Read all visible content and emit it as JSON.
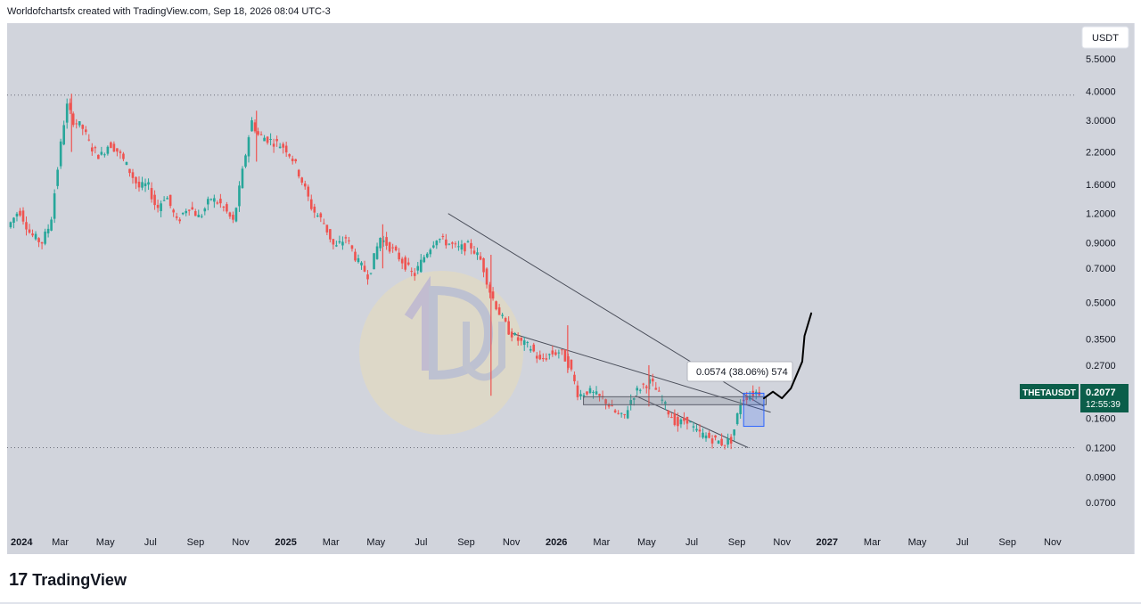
{
  "header": {
    "text": "Worldofchartsfx created with TradingView.com, Sep 18, 2026 08:04 UTC-3"
  },
  "footer": {
    "logo_mark": "17",
    "logo_text": "TradingView"
  },
  "chart_data": {
    "type": "candlestick",
    "currency_label": "USDT",
    "symbol": "THETAUSDT",
    "last_price": "0.2077",
    "countdown": "12:55:39",
    "y_scale": "log",
    "ylim": [
      0.06,
      6.0
    ],
    "y_ticks": [
      {
        "v": 5.5,
        "label": "5.5000"
      },
      {
        "v": 4.0,
        "label": "4.0000"
      },
      {
        "v": 3.0,
        "label": "3.0000"
      },
      {
        "v": 2.2,
        "label": "2.2000"
      },
      {
        "v": 1.6,
        "label": "1.6000"
      },
      {
        "v": 1.2,
        "label": "1.2000"
      },
      {
        "v": 0.9,
        "label": "0.9000"
      },
      {
        "v": 0.7,
        "label": "0.7000"
      },
      {
        "v": 0.5,
        "label": "0.5000"
      },
      {
        "v": 0.35,
        "label": "0.3500"
      },
      {
        "v": 0.27,
        "label": "0.2700"
      },
      {
        "v": 0.16,
        "label": "0.1600"
      },
      {
        "v": 0.12,
        "label": "0.1200"
      },
      {
        "v": 0.09,
        "label": "0.0900"
      },
      {
        "v": 0.07,
        "label": "0.0700"
      }
    ],
    "x_ticks": [
      {
        "t": 0,
        "label": "2024",
        "bold": true
      },
      {
        "t": 2,
        "label": "Mar"
      },
      {
        "t": 4,
        "label": "May"
      },
      {
        "t": 6,
        "label": "Jul"
      },
      {
        "t": 8,
        "label": "Sep"
      },
      {
        "t": 10,
        "label": "Nov"
      },
      {
        "t": 12,
        "label": "2025",
        "bold": true
      },
      {
        "t": 14,
        "label": "Mar"
      },
      {
        "t": 16,
        "label": "May"
      },
      {
        "t": 18,
        "label": "Jul"
      },
      {
        "t": 20,
        "label": "Sep"
      },
      {
        "t": 22,
        "label": "Nov"
      },
      {
        "t": 24,
        "label": "2026",
        "bold": true
      },
      {
        "t": 26,
        "label": "Mar"
      },
      {
        "t": 28,
        "label": "May"
      },
      {
        "t": 30,
        "label": "Jul"
      },
      {
        "t": 32,
        "label": "Sep"
      },
      {
        "t": 34,
        "label": "Nov"
      },
      {
        "t": 36,
        "label": "2027",
        "bold": true
      },
      {
        "t": 38,
        "label": "Mar"
      },
      {
        "t": 40,
        "label": "May"
      },
      {
        "t": 42,
        "label": "Jul"
      },
      {
        "t": 44,
        "label": "Sep"
      },
      {
        "t": 46,
        "label": "Nov"
      }
    ],
    "price_path": [
      [
        -0.2,
        1.05
      ],
      [
        0.3,
        1.25
      ],
      [
        0.8,
        0.98
      ],
      [
        1.3,
        0.9
      ],
      [
        1.7,
        1.1
      ],
      [
        2.1,
        2.2
      ],
      [
        2.4,
        3.5
      ],
      [
        2.7,
        3.0
      ],
      [
        3.1,
        2.8
      ],
      [
        3.5,
        2.3
      ],
      [
        3.9,
        2.1
      ],
      [
        4.3,
        2.4
      ],
      [
        4.7,
        2.2
      ],
      [
        5.1,
        1.9
      ],
      [
        5.6,
        1.55
      ],
      [
        6.0,
        1.6
      ],
      [
        6.4,
        1.25
      ],
      [
        6.8,
        1.45
      ],
      [
        7.3,
        1.1
      ],
      [
        7.8,
        1.3
      ],
      [
        8.3,
        1.15
      ],
      [
        8.8,
        1.4
      ],
      [
        9.3,
        1.3
      ],
      [
        9.8,
        1.1
      ],
      [
        10.2,
        1.8
      ],
      [
        10.6,
        3.0
      ],
      [
        10.9,
        2.6
      ],
      [
        11.3,
        2.5
      ],
      [
        11.7,
        2.4
      ],
      [
        12.1,
        2.3
      ],
      [
        12.5,
        2.0
      ],
      [
        12.9,
        1.6
      ],
      [
        13.3,
        1.25
      ],
      [
        13.8,
        1.1
      ],
      [
        14.3,
        0.85
      ],
      [
        14.8,
        0.95
      ],
      [
        15.3,
        0.75
      ],
      [
        15.8,
        0.65
      ],
      [
        16.3,
        0.95
      ],
      [
        16.8,
        0.85
      ],
      [
        17.3,
        0.75
      ],
      [
        17.8,
        0.65
      ],
      [
        18.3,
        0.8
      ],
      [
        18.8,
        0.95
      ],
      [
        19.3,
        0.9
      ],
      [
        19.8,
        0.85
      ],
      [
        20.3,
        0.88
      ],
      [
        20.8,
        0.75
      ],
      [
        21.2,
        0.55
      ],
      [
        21.6,
        0.45
      ],
      [
        22.0,
        0.38
      ],
      [
        22.5,
        0.34
      ],
      [
        23.0,
        0.32
      ],
      [
        23.4,
        0.28
      ],
      [
        23.8,
        0.3
      ],
      [
        24.3,
        0.31
      ],
      [
        24.7,
        0.27
      ],
      [
        25.1,
        0.2
      ],
      [
        25.5,
        0.21
      ],
      [
        25.9,
        0.2
      ],
      [
        26.3,
        0.19
      ],
      [
        26.7,
        0.17
      ],
      [
        27.1,
        0.16
      ],
      [
        27.5,
        0.2
      ],
      [
        27.9,
        0.22
      ],
      [
        28.3,
        0.23
      ],
      [
        28.7,
        0.2
      ],
      [
        29.1,
        0.17
      ],
      [
        29.5,
        0.15
      ],
      [
        29.9,
        0.16
      ],
      [
        30.3,
        0.14
      ],
      [
        30.7,
        0.135
      ],
      [
        31.1,
        0.13
      ],
      [
        31.5,
        0.125
      ],
      [
        31.9,
        0.13
      ],
      [
        32.3,
        0.19
      ],
      [
        32.6,
        0.2
      ],
      [
        33.0,
        0.2077
      ]
    ],
    "wicks": [
      [
        2.5,
        2.2,
        3.9
      ],
      [
        10.7,
        2.0,
        3.3
      ],
      [
        21.1,
        0.2,
        0.8
      ],
      [
        24.5,
        0.25,
        0.4
      ],
      [
        28.1,
        0.18,
        0.27
      ],
      [
        16.3,
        0.7,
        1.08
      ]
    ],
    "annotations": {
      "measure_label": "0.0574 (38.06%) 574",
      "dotted_levels": [
        3.85,
        0.12
      ],
      "trend_lines": [
        [
          [
            19.2,
            1.2
          ],
          [
            33.2,
            0.18
          ]
        ],
        [
          [
            22.0,
            0.37
          ],
          [
            33.5,
            0.17
          ]
        ],
        [
          [
            27.5,
            0.2
          ],
          [
            32.5,
            0.12
          ]
        ]
      ],
      "range_box": {
        "t0": 25.2,
        "t1": 33.3,
        "top": 0.198,
        "bottom": 0.183
      },
      "measure_box": {
        "t0": 32.3,
        "t1": 33.2,
        "top": 0.205,
        "bottom": 0.148
      },
      "projection": [
        [
          33.2,
          0.195
        ],
        [
          33.6,
          0.208
        ],
        [
          34.0,
          0.195
        ],
        [
          34.4,
          0.215
        ],
        [
          34.9,
          0.28
        ],
        [
          35.0,
          0.36
        ],
        [
          35.3,
          0.45
        ]
      ]
    }
  }
}
